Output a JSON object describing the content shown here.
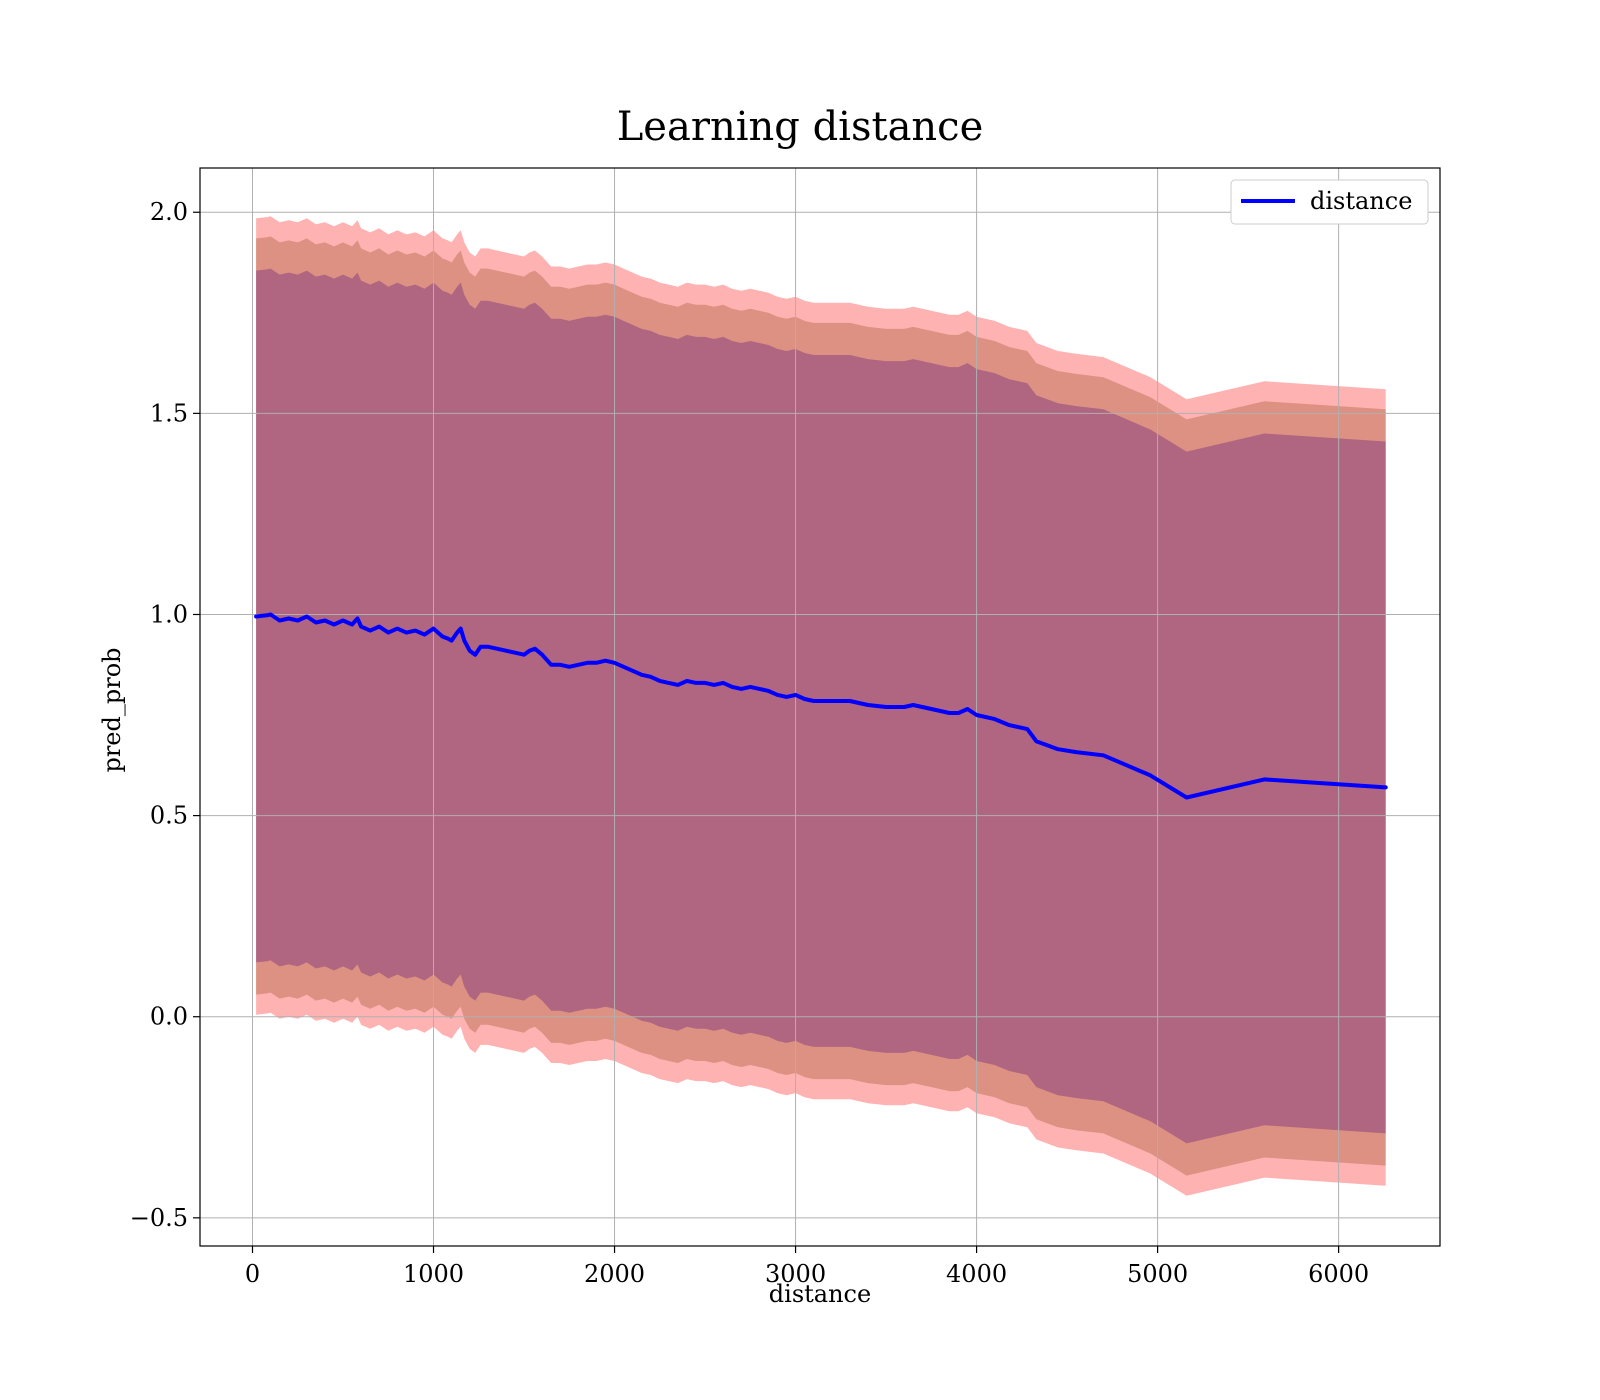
{
  "chart_data": {
    "type": "line",
    "title": "Learning distance",
    "xlabel": "distance",
    "ylabel": "pred_prob",
    "xlim": [
      -290,
      6560
    ],
    "ylim": [
      -0.57,
      2.11
    ],
    "xticks": [
      "0",
      "1000",
      "2000",
      "3000",
      "4000",
      "5000",
      "6000"
    ],
    "yticks": [
      "−0.5",
      "0.0",
      "0.5",
      "1.0",
      "1.5",
      "2.0"
    ],
    "xtick_values": [
      0,
      1000,
      2000,
      3000,
      4000,
      5000,
      6000
    ],
    "ytick_values": [
      -0.5,
      0.0,
      0.5,
      1.0,
      1.5,
      2.0
    ],
    "grid": true,
    "legend_position": "top-right",
    "series": [
      {
        "name": "distance",
        "color": "#0000ff",
        "x": [
          20,
          80,
          100,
          150,
          200,
          250,
          300,
          350,
          400,
          450,
          500,
          550,
          580,
          600,
          650,
          700,
          750,
          800,
          850,
          900,
          950,
          1000,
          1050,
          1080,
          1100,
          1130,
          1150,
          1170,
          1200,
          1230,
          1260,
          1300,
          1350,
          1400,
          1450,
          1500,
          1530,
          1560,
          1600,
          1650,
          1700,
          1750,
          1800,
          1850,
          1900,
          1950,
          2000,
          2050,
          2100,
          2150,
          2200,
          2250,
          2300,
          2350,
          2400,
          2450,
          2500,
          2550,
          2600,
          2650,
          2700,
          2750,
          2800,
          2850,
          2900,
          2950,
          3000,
          3050,
          3100,
          3200,
          3300,
          3400,
          3500,
          3600,
          3650,
          3700,
          3750,
          3800,
          3850,
          3900,
          3950,
          4000,
          4100,
          4180,
          4280,
          4330,
          4450,
          4550,
          4700,
          4830,
          4960,
          5160,
          5590,
          6260
        ],
        "values": [
          0.995,
          0.998,
          1.0,
          0.985,
          0.99,
          0.985,
          0.995,
          0.98,
          0.985,
          0.975,
          0.985,
          0.975,
          0.99,
          0.97,
          0.96,
          0.97,
          0.955,
          0.965,
          0.955,
          0.96,
          0.95,
          0.965,
          0.945,
          0.94,
          0.935,
          0.955,
          0.965,
          0.935,
          0.91,
          0.9,
          0.92,
          0.92,
          0.915,
          0.91,
          0.905,
          0.9,
          0.91,
          0.915,
          0.9,
          0.875,
          0.875,
          0.87,
          0.875,
          0.88,
          0.88,
          0.885,
          0.88,
          0.87,
          0.86,
          0.85,
          0.845,
          0.835,
          0.83,
          0.825,
          0.835,
          0.83,
          0.83,
          0.825,
          0.83,
          0.82,
          0.815,
          0.82,
          0.815,
          0.81,
          0.8,
          0.795,
          0.8,
          0.79,
          0.785,
          0.785,
          0.785,
          0.775,
          0.77,
          0.77,
          0.775,
          0.77,
          0.765,
          0.76,
          0.755,
          0.755,
          0.765,
          0.75,
          0.74,
          0.725,
          0.715,
          0.685,
          0.665,
          0.658,
          0.65,
          0.625,
          0.6,
          0.545,
          0.59,
          0.57
        ]
      }
    ],
    "bands": [
      {
        "label": "",
        "color": "#ff0000",
        "opacity": 0.3,
        "half_width": 0.99
      },
      {
        "label": "",
        "color": "#8b4513",
        "opacity": 0.3,
        "half_width": 0.94
      },
      {
        "label": "",
        "color": "#4b0082",
        "opacity": 0.3,
        "half_width": 0.86
      }
    ]
  }
}
